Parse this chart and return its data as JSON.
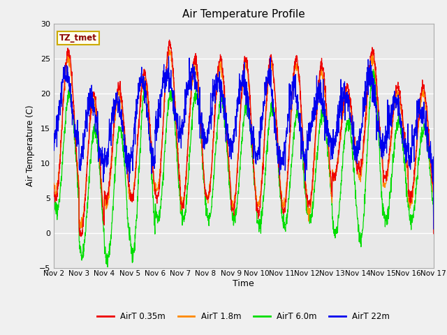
{
  "title": "Air Temperature Profile",
  "xlabel": "Time",
  "ylabel": "Air Temperature (C)",
  "ylim": [
    -5,
    30
  ],
  "fig_facecolor": "#f0f0f0",
  "plot_bg_color": "#e8e8e8",
  "grid_color": "#ffffff",
  "annotation_text": "TZ_tmet",
  "annotation_color": "#8b0000",
  "annotation_bg": "#ffffee",
  "annotation_border": "#ccaa00",
  "series_colors": {
    "AirT 0.35m": "#ee0000",
    "AirT 1.8m": "#ff8800",
    "AirT 6.0m": "#00dd00",
    "AirT 22m": "#0000ee"
  },
  "x_tick_labels": [
    "Nov 2",
    "Nov 3",
    "Nov 4",
    "Nov 5",
    "Nov 6",
    "Nov 7",
    "Nov 8",
    "Nov 9",
    "Nov 10",
    "Nov 11",
    "Nov 12",
    "Nov 13",
    "Nov 14",
    "Nov 15",
    "Nov 16",
    "Nov 17"
  ],
  "yticks": [
    -5,
    0,
    5,
    10,
    15,
    20,
    25,
    30
  ],
  "days": 15,
  "day_peaks_035": [
    26,
    20,
    21,
    23,
    27,
    25,
    25,
    25,
    25,
    25,
    24,
    21,
    26,
    21,
    21
  ],
  "day_troughs_035": [
    5,
    0,
    5,
    5,
    5,
    4,
    5,
    3,
    3,
    3,
    4,
    8,
    9,
    8,
    5
  ],
  "day_peaks_18": [
    25,
    19,
    20,
    22,
    26,
    24,
    24,
    24,
    24,
    24,
    23,
    20,
    25,
    20,
    20
  ],
  "day_troughs_18": [
    6,
    1,
    4,
    5,
    6,
    4,
    5,
    4,
    4,
    4,
    3,
    8,
    8,
    7,
    4
  ],
  "day_peaks_60": [
    20,
    15,
    15,
    21,
    20,
    20,
    19,
    18,
    18,
    17,
    17,
    16,
    23,
    16,
    15
  ],
  "day_troughs_60": [
    3,
    -3,
    -4,
    -3,
    2,
    2,
    2,
    2,
    1,
    1,
    2,
    0,
    -1,
    2,
    2
  ],
  "day_peaks_22m": [
    23,
    19,
    19,
    22,
    23,
    23,
    22,
    22,
    22,
    21,
    20,
    20,
    23,
    19,
    18
  ],
  "day_troughs_22m": [
    13,
    10,
    10,
    10,
    15,
    14,
    13,
    12,
    10,
    10,
    13,
    12,
    12,
    12,
    10
  ],
  "peak_phase": 0.58,
  "noise_035": 0.4,
  "noise_18": 0.4,
  "noise_60": 0.5,
  "noise_22m": 0.8,
  "n_points": 2000
}
